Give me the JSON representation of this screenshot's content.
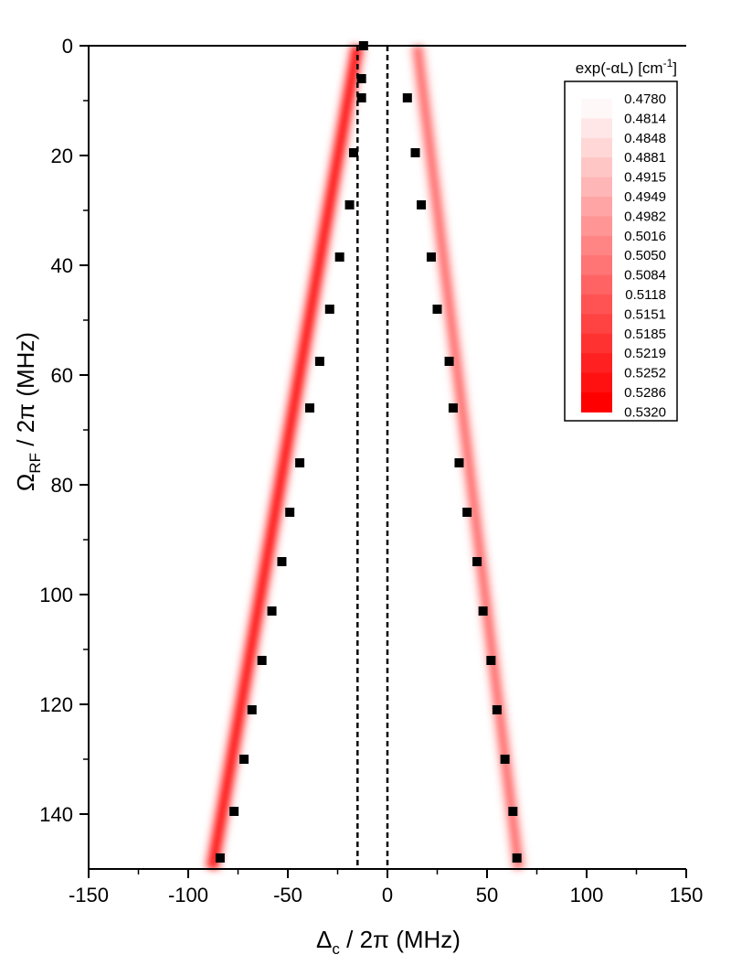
{
  "chart_data": {
    "type": "heatmap",
    "xlabel": {
      "main": "Δ",
      "sub": "c",
      "rest": " / 2π (MHz)"
    },
    "ylabel": {
      "main": "Ω",
      "sub": "RF",
      "rest": " / 2π (MHz)"
    },
    "xlim": [
      -150,
      150
    ],
    "ylim": [
      0,
      150
    ],
    "y_inverted": true,
    "x_ticks": [
      -150,
      -100,
      -50,
      0,
      50,
      100,
      150
    ],
    "y_ticks": [
      0,
      20,
      40,
      60,
      80,
      100,
      120,
      140
    ],
    "reference_lines_x": [
      -15,
      0
    ],
    "bands": [
      {
        "name": "left",
        "x_at_top": -15,
        "x_at_bottom": -88,
        "max_intensity": 1.0
      },
      {
        "name": "right",
        "x_at_top": 15,
        "x_at_bottom": 66,
        "max_intensity": 0.45
      }
    ],
    "scatter_series": [
      {
        "name": "left",
        "points": [
          [
            -12,
            0
          ],
          [
            -13,
            6
          ],
          [
            -13,
            9.5
          ],
          [
            -17,
            19.5
          ],
          [
            -19,
            29
          ],
          [
            -24,
            38.5
          ],
          [
            -29,
            48
          ],
          [
            -34,
            57.5
          ],
          [
            -39,
            66
          ],
          [
            -44,
            76
          ],
          [
            -49,
            85
          ],
          [
            -53,
            94
          ],
          [
            -58,
            103
          ],
          [
            -63,
            112
          ],
          [
            -68,
            121
          ],
          [
            -72,
            130
          ],
          [
            -77,
            139.5
          ],
          [
            -84,
            148
          ]
        ]
      },
      {
        "name": "right",
        "points": [
          [
            10,
            9.5
          ],
          [
            14,
            19.5
          ],
          [
            17,
            29
          ],
          [
            22,
            38.5
          ],
          [
            25,
            48
          ],
          [
            31,
            57.5
          ],
          [
            33,
            66
          ],
          [
            36,
            76
          ],
          [
            40,
            85
          ],
          [
            45,
            94
          ],
          [
            48,
            103
          ],
          [
            52,
            112
          ],
          [
            55,
            121
          ],
          [
            59,
            130
          ],
          [
            63,
            139.5
          ],
          [
            65,
            148
          ]
        ]
      }
    ],
    "legend": {
      "title": {
        "main": "exp(-αL) [cm",
        "sup": "-1",
        "close": "]"
      },
      "position": "top-right",
      "levels": [
        "0.4780",
        "0.4814",
        "0.4848",
        "0.4881",
        "0.4915",
        "0.4949",
        "0.4982",
        "0.5016",
        "0.5050",
        "0.5084",
        "0.5118",
        "0.5151",
        "0.5185",
        "0.5219",
        "0.5252",
        "0.5286",
        "0.5320"
      ]
    }
  }
}
